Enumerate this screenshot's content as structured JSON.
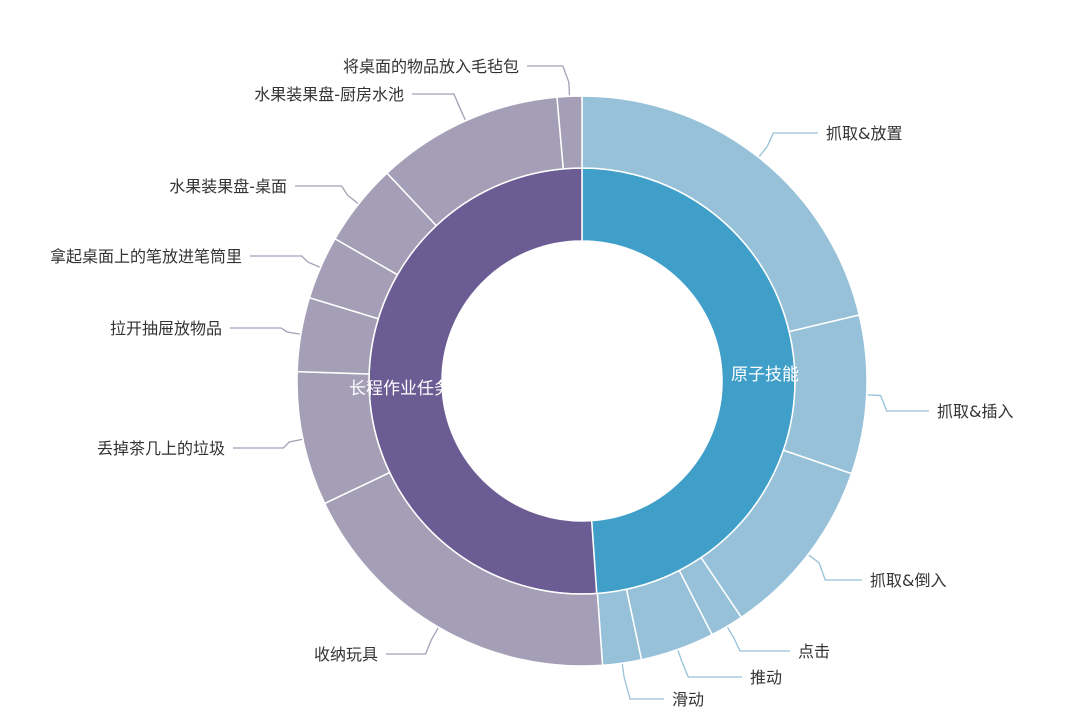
{
  "chart_data": {
    "type": "sunburst",
    "title": "",
    "unit": "percent (estimated from arc angles)",
    "colors": {
      "atomic_inner": "#3f9fc9",
      "atomic_outer": "#96c1d9",
      "long_inner": "#6b5d93",
      "long_outer": "#a49fb7"
    },
    "inner": [
      {
        "name": "原子技能",
        "value": 48.9
      },
      {
        "name": "长程作业任务",
        "value": 51.1
      }
    ],
    "outer": [
      {
        "name": "抓取&放置",
        "parent": "原子技能",
        "value": 21.3
      },
      {
        "name": "抓取&插入",
        "parent": "原子技能",
        "value": 9.0
      },
      {
        "name": "抓取&倒入",
        "parent": "原子技能",
        "value": 10.3
      },
      {
        "name": "点击",
        "parent": "原子技能",
        "value": 1.9
      },
      {
        "name": "推动",
        "parent": "原子技能",
        "value": 4.2
      },
      {
        "name": "滑动",
        "parent": "原子技能",
        "value": 2.2
      },
      {
        "name": "收纳玩具",
        "parent": "长程作业任务",
        "value": 19.1
      },
      {
        "name": "丢掉茶几上的垃圾",
        "parent": "长程作业任务",
        "value": 7.6
      },
      {
        "name": "拉开抽屉放物品",
        "parent": "长程作业任务",
        "value": 4.2
      },
      {
        "name": "拿起桌面上的笔放进笔筒里",
        "parent": "长程作业任务",
        "value": 3.6
      },
      {
        "name": "水果装果盘-桌面",
        "parent": "长程作业任务",
        "value": 4.7
      },
      {
        "name": "水果装果盘-厨房水池",
        "parent": "长程作业任务",
        "value": 10.6
      },
      {
        "name": "将桌面的物品放入毛毡包",
        "parent": "长程作业任务",
        "value": 1.4
      }
    ]
  }
}
